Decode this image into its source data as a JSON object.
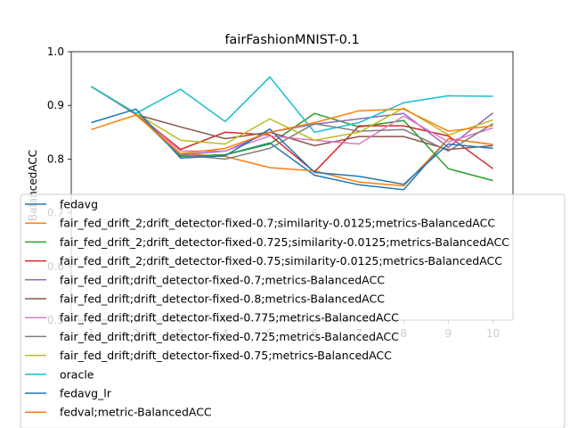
{
  "chart_data": {
    "type": "line",
    "title": "fairFashionMNIST-0.1",
    "xlabel": "",
    "ylabel": "BalancedACC",
    "x": [
      1,
      2,
      3,
      4,
      5,
      6,
      7,
      8,
      9,
      10
    ],
    "xticks": [
      "1",
      "2",
      "3",
      "4",
      "5",
      "6",
      "7",
      "8",
      "9",
      "10"
    ],
    "ylim": [
      0.5,
      1.0
    ],
    "yticks": [
      "0.5",
      "0.6",
      "0.7",
      "0.8",
      "0.9",
      "1.0"
    ],
    "grid": false,
    "legend_position": "lower-center",
    "series": [
      {
        "name": "fedavg",
        "color": "#1f77b4",
        "values": [
          0.935,
          0.885,
          0.805,
          0.808,
          0.83,
          0.77,
          0.752,
          0.743,
          0.838,
          0.827
        ]
      },
      {
        "name": "fair_fed_drift_2;drift_detector-fixed-0.7;similarity-0.0125;metrics-BalancedACC",
        "color": "#ff7f0e",
        "values": [
          0.935,
          0.885,
          0.81,
          0.805,
          0.784,
          0.778,
          0.757,
          0.75,
          0.838,
          0.827
        ]
      },
      {
        "name": "fair_fed_drift_2;drift_detector-fixed-0.725;similarity-0.0125;metrics-BalancedACC",
        "color": "#2ca02c",
        "values": [
          0.935,
          0.885,
          0.805,
          0.808,
          0.828,
          0.885,
          0.86,
          0.872,
          0.782,
          0.76
        ]
      },
      {
        "name": "fair_fed_drift_2;drift_detector-fixed-0.75;similarity-0.0125;metrics-BalancedACC",
        "color": "#d62728",
        "values": [
          0.935,
          0.885,
          0.818,
          0.85,
          0.845,
          0.776,
          0.862,
          0.862,
          0.843,
          0.782
        ]
      },
      {
        "name": "fair_fed_drift;drift_detector-fixed-0.7;metrics-BalancedACC",
        "color": "#9467bd",
        "values": [
          0.935,
          0.885,
          0.808,
          0.815,
          0.85,
          0.865,
          0.875,
          0.885,
          0.822,
          0.886
        ]
      },
      {
        "name": "fair_fed_drift;drift_detector-fixed-0.8;metrics-BalancedACC",
        "color": "#8c564b",
        "values": [
          0.935,
          0.883,
          0.86,
          0.838,
          0.85,
          0.825,
          0.842,
          0.842,
          0.818,
          0.825
        ]
      },
      {
        "name": "fair_fed_drift;drift_detector-fixed-0.775;metrics-BalancedACC",
        "color": "#e377c2",
        "values": [
          0.935,
          0.885,
          0.815,
          0.815,
          0.843,
          0.835,
          0.828,
          0.88,
          0.832,
          0.858
        ]
      },
      {
        "name": "fair_fed_drift;drift_detector-fixed-0.725;metrics-BalancedACC",
        "color": "#7f7f7f",
        "values": [
          0.935,
          0.885,
          0.808,
          0.8,
          0.82,
          0.866,
          0.852,
          0.855,
          0.815,
          0.866
        ]
      },
      {
        "name": "fair_fed_drift;drift_detector-fixed-0.75;metrics-BalancedACC",
        "color": "#bcbd22",
        "values": [
          0.935,
          0.885,
          0.835,
          0.828,
          0.875,
          0.835,
          0.85,
          0.895,
          0.845,
          0.873
        ]
      },
      {
        "name": "oracle",
        "color": "#17becf",
        "values": [
          0.935,
          0.885,
          0.93,
          0.87,
          0.953,
          0.85,
          0.868,
          0.905,
          0.918,
          0.917
        ]
      },
      {
        "name": "fedavg_lr",
        "color": "#1f77b4",
        "values": [
          0.868,
          0.893,
          0.802,
          0.806,
          0.856,
          0.775,
          0.768,
          0.753,
          0.828,
          0.82
        ]
      },
      {
        "name": "fedval;metric-BalancedACC",
        "color": "#ff7f0e",
        "values": [
          0.855,
          0.882,
          0.81,
          0.82,
          0.85,
          0.868,
          0.89,
          0.893,
          0.852,
          0.862
        ]
      }
    ]
  }
}
